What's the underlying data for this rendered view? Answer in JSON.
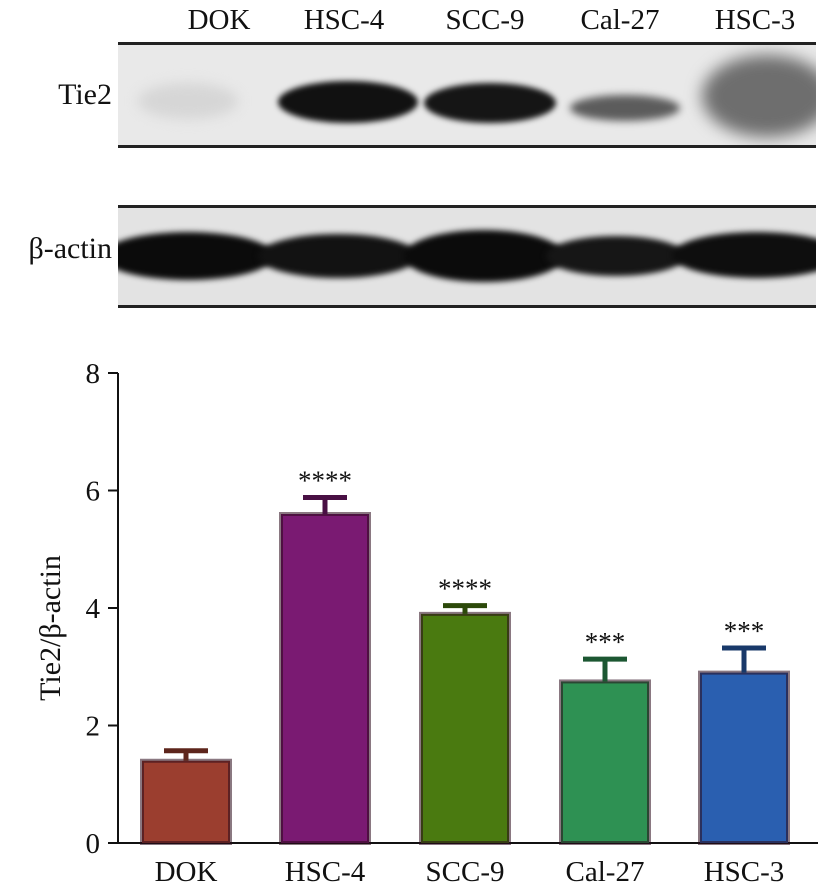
{
  "blot": {
    "lanes": [
      "DOK",
      "HSC-4",
      "SCC-9",
      "Cal-27",
      "HSC-3"
    ],
    "rows": [
      "Tie2",
      "β-actin"
    ]
  },
  "chart_data": {
    "type": "bar",
    "categories": [
      "DOK",
      "HSC-4",
      "SCC-9",
      "Cal-27",
      "HSC-3"
    ],
    "values": [
      1.4,
      5.6,
      3.9,
      2.75,
      2.9
    ],
    "errors": [
      0.17,
      0.28,
      0.14,
      0.38,
      0.42
    ],
    "significance": [
      "",
      "****",
      "****",
      "***",
      "***"
    ],
    "colors": [
      "#9b3e2f",
      "#7a1a72",
      "#4a7a10",
      "#2e9153",
      "#2a5fb0"
    ],
    "ylabel": "Tie2/β-actin",
    "xlabel": "",
    "ylim": [
      0,
      8
    ],
    "yticks": [
      0,
      2,
      4,
      6,
      8
    ],
    "grid": false
  }
}
